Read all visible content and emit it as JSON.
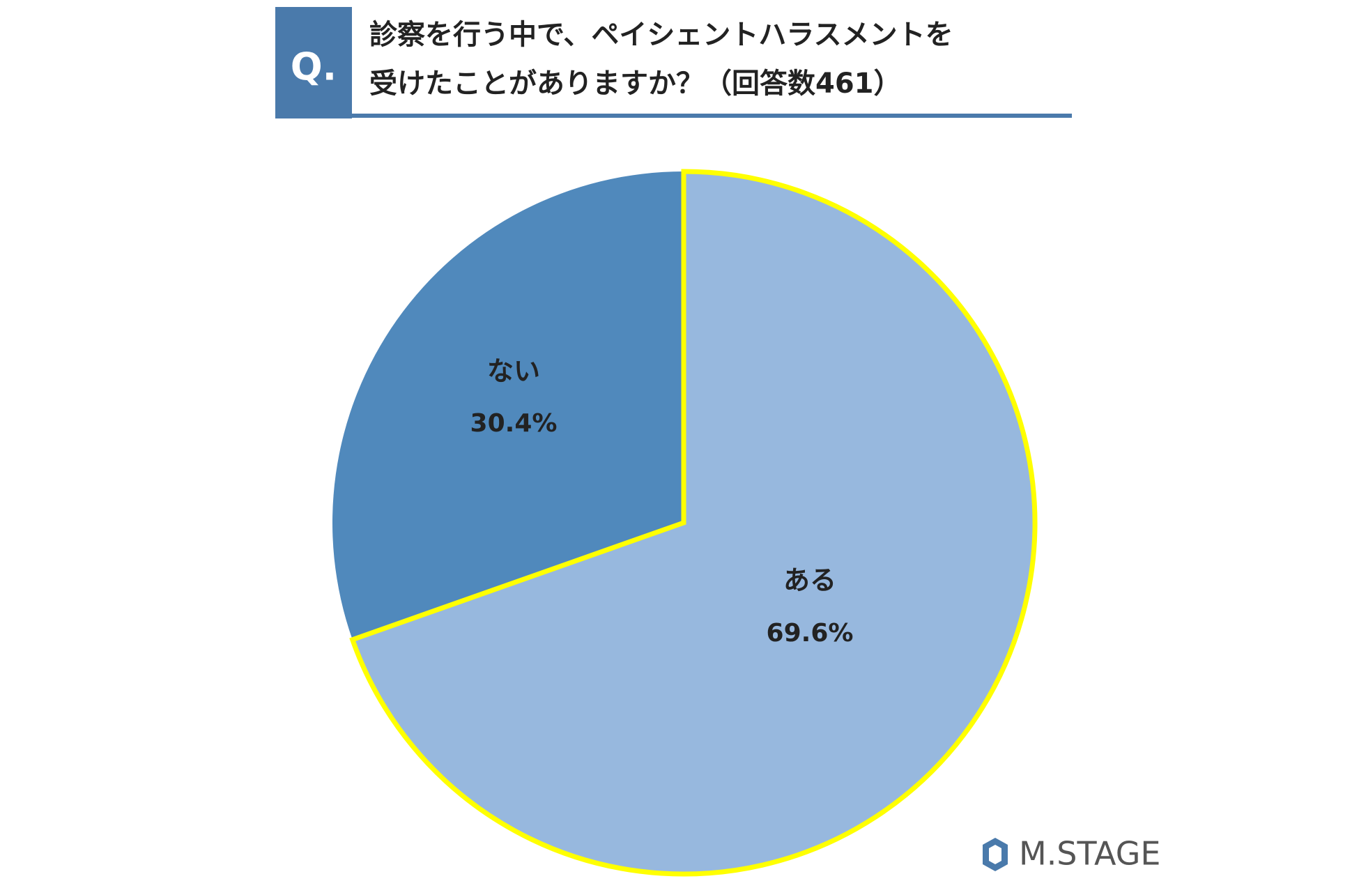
{
  "chart_data": {
    "type": "pie",
    "badge": "Q.",
    "title": [
      "診察を行う中で、ペイシェントハラスメントを",
      "受けたことがありますか？（回答数461）"
    ],
    "categories": [
      "ある",
      "ない"
    ],
    "values": [
      69.6,
      30.4
    ],
    "value_labels": [
      "69.6%",
      "30.4%"
    ],
    "colors": [
      "#97b8de",
      "#5089bc"
    ],
    "logo": "M.STAGE"
  }
}
